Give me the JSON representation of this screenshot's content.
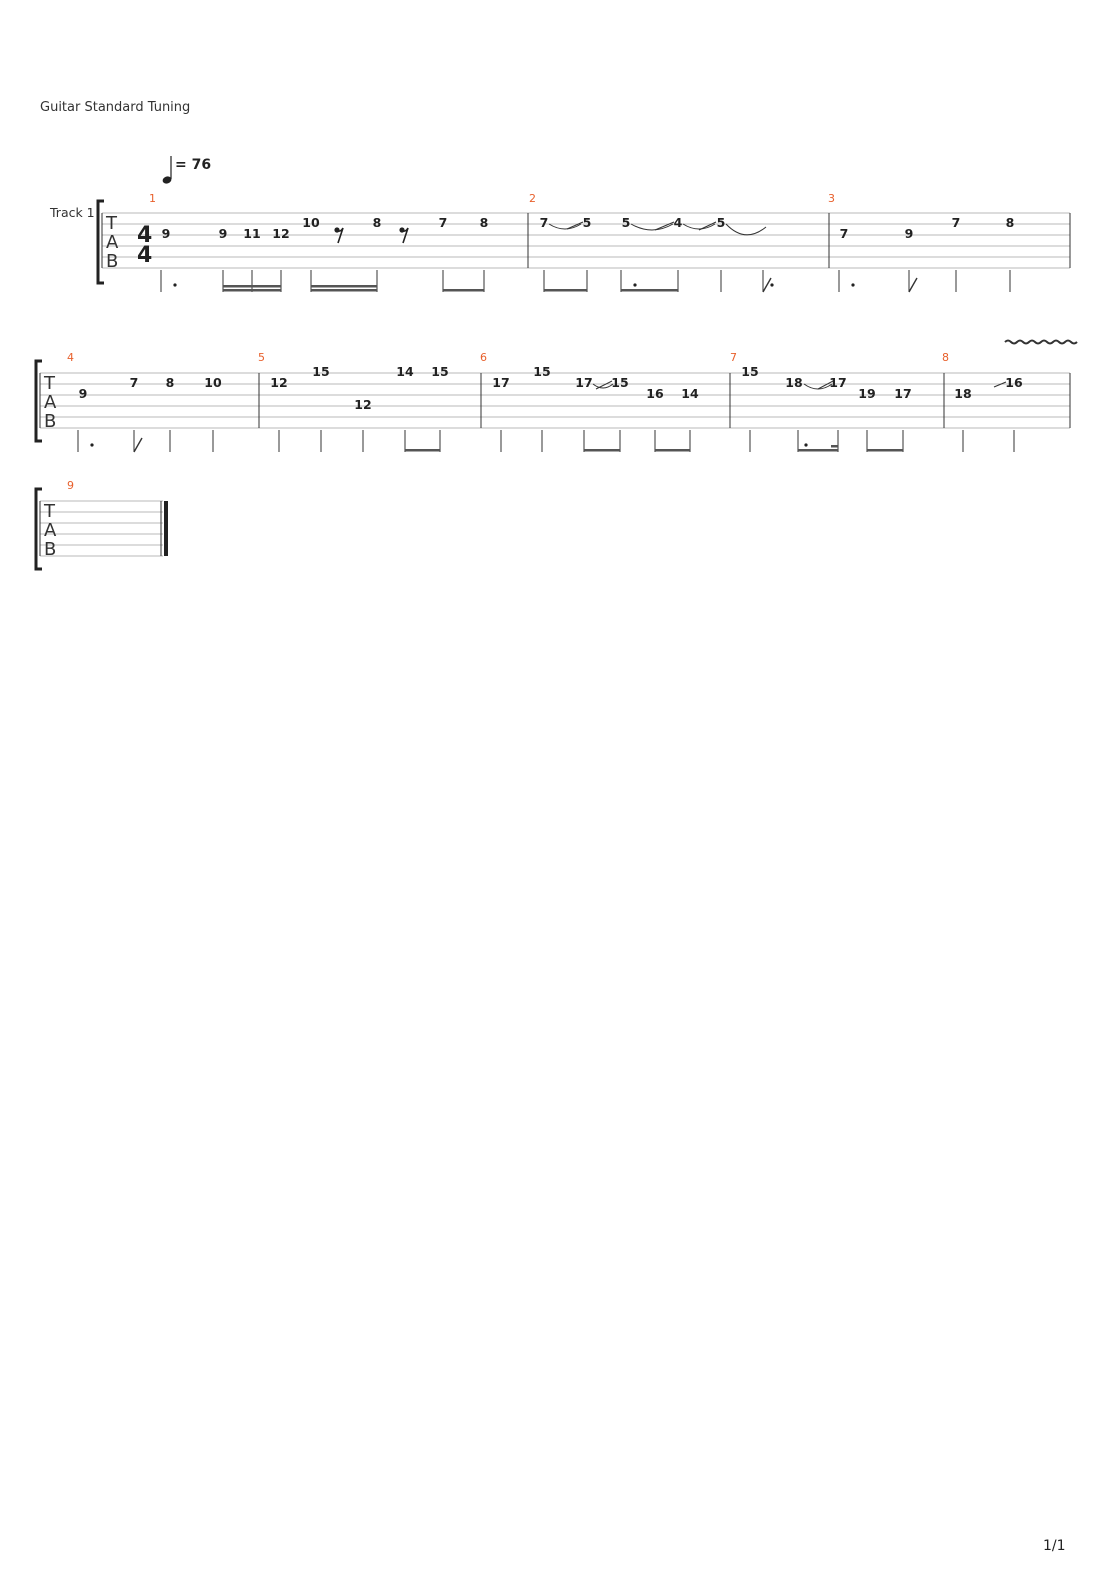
{
  "header": {
    "tuning": "Guitar Standard Tuning",
    "track": "Track 1"
  },
  "tempo": {
    "value": "= 76"
  },
  "time_signature": {
    "top": "4",
    "bottom": "4"
  },
  "tab_letters": [
    "T",
    "A",
    "B"
  ],
  "measures": [
    {
      "number": "1",
      "frets": [
        "9",
        "9",
        "11",
        "12",
        "10",
        "8",
        "7",
        "8"
      ]
    },
    {
      "number": "2",
      "frets": [
        "7",
        "5",
        "5",
        "4",
        "5"
      ]
    },
    {
      "number": "3",
      "frets": [
        "7",
        "9",
        "7",
        "8"
      ]
    },
    {
      "number": "4",
      "frets": [
        "9",
        "7",
        "8",
        "10"
      ]
    },
    {
      "number": "5",
      "frets": [
        "12",
        "15",
        "12",
        "14",
        "15"
      ]
    },
    {
      "number": "6",
      "frets": [
        "17",
        "15",
        "17",
        "15",
        "16",
        "14"
      ]
    },
    {
      "number": "7",
      "frets": [
        "15",
        "18",
        "17",
        "19",
        "17"
      ]
    },
    {
      "number": "8",
      "frets": [
        "18",
        "16"
      ]
    },
    {
      "number": "9",
      "frets": []
    }
  ],
  "footer": {
    "page": "1/1"
  }
}
